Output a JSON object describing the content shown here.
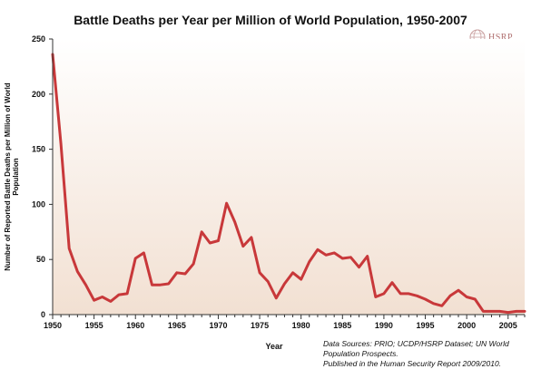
{
  "chart_data": {
    "type": "line",
    "title": "Battle Deaths per Year per Million of World Population, 1950-2007",
    "xlabel": "Year",
    "ylabel": "Number of Reported Battle Deaths per Million of World Population",
    "xlim": [
      1950,
      2007
    ],
    "ylim": [
      0,
      250
    ],
    "x_ticks": [
      "1950",
      "1955",
      "1960",
      "1965",
      "1970",
      "1975",
      "1980",
      "1985",
      "1990",
      "1995",
      "2000",
      "2005"
    ],
    "x_tick_values": [
      1950,
      1955,
      1960,
      1965,
      1970,
      1975,
      1980,
      1985,
      1990,
      1995,
      2000,
      2005
    ],
    "y_ticks": [
      "0",
      "50",
      "100",
      "150",
      "200",
      "250"
    ],
    "y_tick_values": [
      0,
      50,
      100,
      150,
      200,
      250
    ],
    "grid": false,
    "series": [
      {
        "color": "#c8383a",
        "x": [
          1950,
          1951,
          1952,
          1953,
          1954,
          1955,
          1956,
          1957,
          1958,
          1959,
          1960,
          1961,
          1962,
          1963,
          1964,
          1965,
          1966,
          1967,
          1968,
          1969,
          1970,
          1971,
          1972,
          1973,
          1974,
          1975,
          1976,
          1977,
          1978,
          1979,
          1980,
          1981,
          1982,
          1983,
          1984,
          1985,
          1986,
          1987,
          1988,
          1989,
          1990,
          1991,
          1992,
          1993,
          1994,
          1995,
          1996,
          1997,
          1998,
          1999,
          2000,
          2001,
          2002,
          2003,
          2004,
          2005,
          2006,
          2007
        ],
        "values": [
          236,
          155,
          60,
          39,
          27,
          13,
          16,
          12,
          18,
          19,
          51,
          56,
          27,
          27,
          28,
          38,
          37,
          46,
          75,
          65,
          67,
          101,
          84,
          62,
          70,
          38,
          30,
          15,
          28,
          38,
          32,
          48,
          59,
          54,
          56,
          51,
          52,
          43,
          53,
          16,
          19,
          29,
          19,
          19,
          17,
          14,
          10,
          8,
          17,
          22,
          16,
          14,
          3,
          3,
          3,
          2,
          3,
          3
        ]
      }
    ]
  },
  "labels": {
    "logo_text": "HSRP"
  },
  "source": {
    "lines": [
      "Data Sources: PRIO; UCDP/HSRP Dataset; UN World",
      "Population Prospects.",
      "Published in the Human Security Report 2009/2010."
    ]
  },
  "colors": {
    "plot_top": "#ffffff",
    "plot_bottom": "#f2e0d2",
    "line": "#c8383a"
  }
}
